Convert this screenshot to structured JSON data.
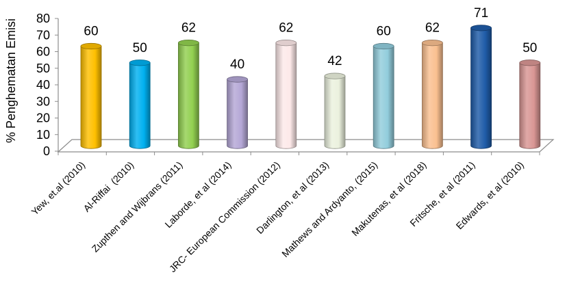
{
  "chart_data": {
    "type": "bar",
    "style": "3d-cylinder",
    "categories": [
      "Yew, et.al (2010)",
      "Al-Riffai  (2010)",
      "Zupthen and Wijbrans (2011)",
      "Laborde, et al (2014)",
      "JRC- European Commission (2012)",
      "Darlington, et al (2013)",
      "Mathews and Ardyanto, (2015)",
      "Makutenas, et al (2018)",
      "Fritsche, et al (2011)",
      "Edwards, et al (2010)"
    ],
    "values": [
      60,
      50,
      62,
      40,
      62,
      42,
      60,
      62,
      71,
      50
    ],
    "colors": [
      "#FFC000",
      "#00B0F0",
      "#92D050",
      "#B4A7D6",
      "#FDE9E9",
      "#EBF1DE",
      "#92CDDC",
      "#FAC090",
      "#1F5CA8",
      "#D99694"
    ],
    "ylabel": "% Penghematan Emisi",
    "ylim": [
      0,
      80
    ],
    "yticks": [
      0,
      10,
      20,
      30,
      40,
      50,
      60,
      70,
      80
    ],
    "data_labels": true,
    "grid": false,
    "legend": "none"
  }
}
